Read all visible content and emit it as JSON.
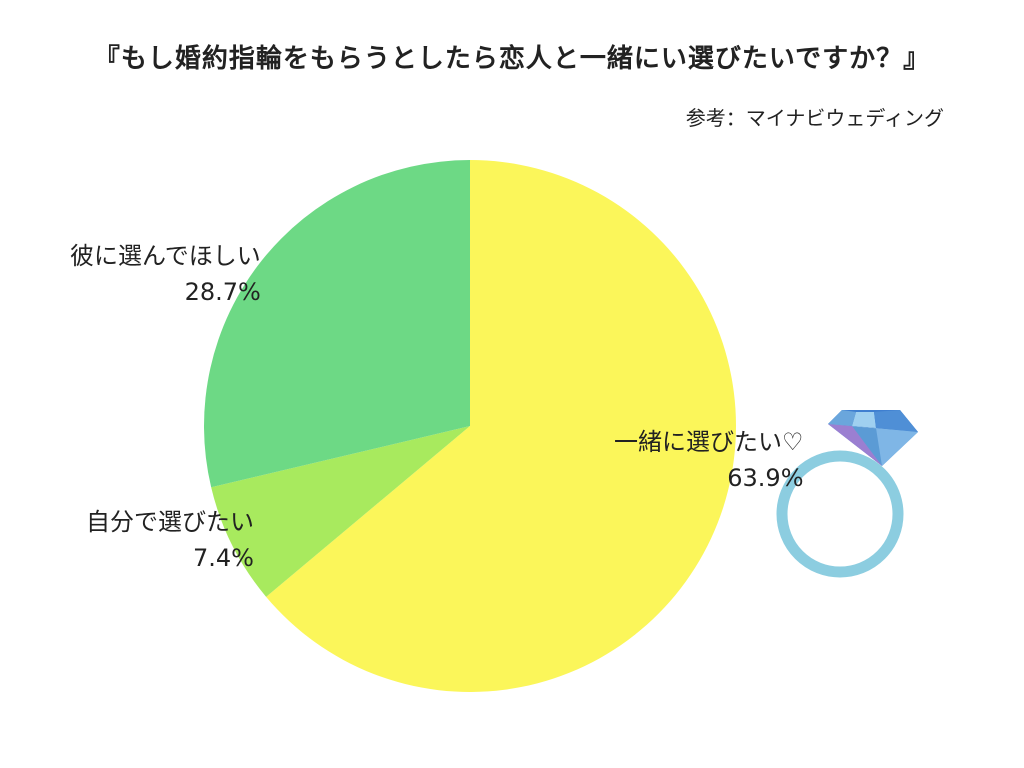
{
  "title": "『もし婚約指輪をもらうとしたら恋人と一緒にい選びたいですか？』",
  "source": "参考：マイナビウェディング",
  "colors": {
    "together": "#fbf65a",
    "self": "#a8ea5e",
    "him": "#6dd985",
    "ring_band": "#8ccde0",
    "gem_blue": "#5b9bd5",
    "gem_purple": "#9b7fd1"
  },
  "icons": {
    "ring": "diamond-ring-icon"
  },
  "chart_data": {
    "type": "pie",
    "start_angle_deg": 0,
    "direction": "clockwise",
    "slices": [
      {
        "label": "一緒に選びたい♡",
        "value": 63.9,
        "display": "63.9%",
        "color": "#fbf65a"
      },
      {
        "label": "自分で選びたい",
        "value": 7.4,
        "display": "7.4%",
        "color": "#a8ea5e"
      },
      {
        "label": "彼に選んでほしい",
        "value": 28.7,
        "display": "28.7%",
        "color": "#6dd985"
      }
    ]
  }
}
